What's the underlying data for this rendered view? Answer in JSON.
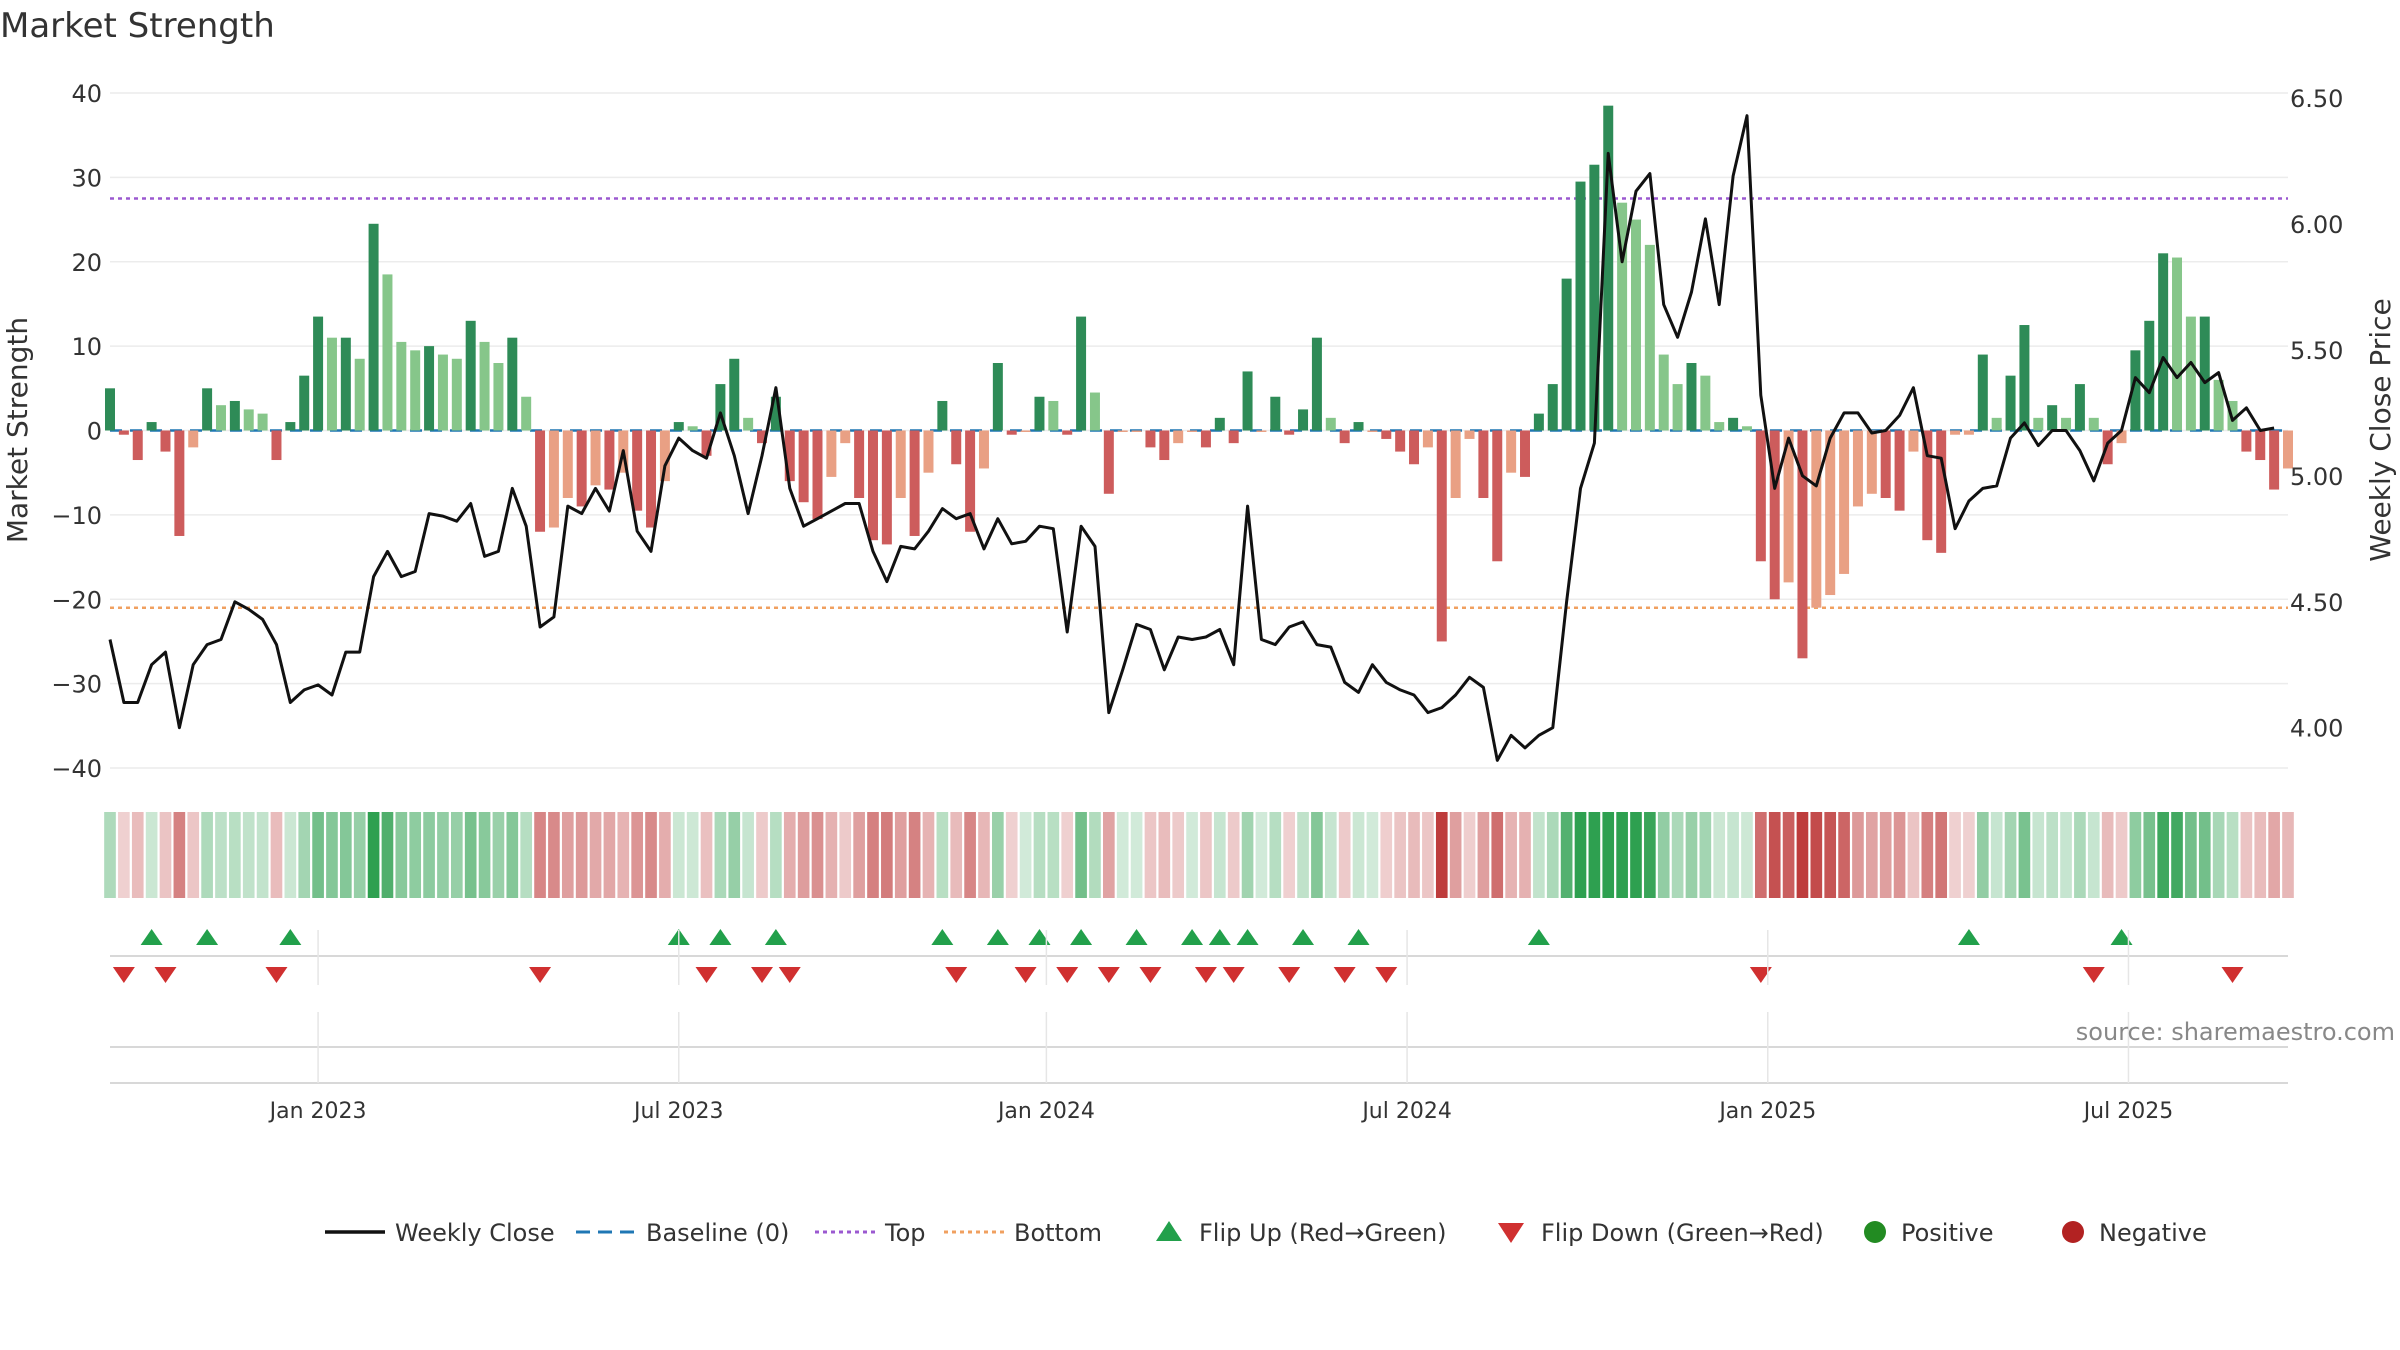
{
  "title": "Market Strength",
  "source": "source: sharemaestro.com",
  "legend": [
    {
      "label": "Weekly Close",
      "kind": "line",
      "color": "#111111"
    },
    {
      "label": "Baseline (0)",
      "kind": "dash",
      "color": "#1f77b4"
    },
    {
      "label": "Top",
      "kind": "dot",
      "color": "#9b59d0"
    },
    {
      "label": "Bottom",
      "kind": "dot",
      "color": "#f0a060"
    },
    {
      "label": "Flip Up (Red→Green)",
      "kind": "tri-up",
      "color": "#22a04b"
    },
    {
      "label": "Flip Down (Green→Red)",
      "kind": "tri-down",
      "color": "#d03030"
    },
    {
      "label": "Positive",
      "kind": "circle",
      "color": "#228b22"
    },
    {
      "label": "Negative",
      "kind": "circle",
      "color": "#b22222"
    }
  ],
  "chart_data": {
    "type": "bar",
    "title": "Market Strength",
    "ylabel": "Market Strength",
    "y2label": "Weekly Close Price",
    "ylim": [
      -40,
      40
    ],
    "y_ticks": [
      "40",
      "30",
      "20",
      "10",
      "0",
      "−10",
      "−20",
      "−30",
      "−40"
    ],
    "y2lim": [
      3.84,
      6.52
    ],
    "y2_ticks": [
      "6.50",
      "6.00",
      "5.50",
      "5.00",
      "4.50",
      "4.00"
    ],
    "x_ticks": [
      "Jan 2023",
      "Jul 2023",
      "Jan 2024",
      "Jul 2024",
      "Jan 2025",
      "Jul 2025"
    ],
    "x_tick_weeks": [
      15,
      41,
      67.5,
      93.5,
      119.5,
      145.5
    ],
    "top_level": 27.5,
    "bottom_level": -21,
    "baseline": 0,
    "colors": {
      "strong_pos": "#2e8b57",
      "weak_pos": "#86c68a",
      "strong_neg": "#cd5c5c",
      "weak_neg": "#e9a084",
      "close": "#111111",
      "flip_up": "#22a04b",
      "flip_down": "#d03030"
    },
    "strength": [
      5,
      -0.5,
      -3.5,
      1,
      -2.5,
      -12.5,
      -2,
      5,
      3,
      3.5,
      2.5,
      2,
      -3.5,
      1,
      6.5,
      13.5,
      11,
      11,
      8.5,
      24.5,
      18.5,
      10.5,
      9.5,
      10,
      9,
      8.5,
      13,
      10.5,
      8,
      11,
      4,
      -12,
      -11.5,
      -8,
      -9,
      -6.5,
      -7,
      -5,
      -9.5,
      -11.5,
      -6,
      1,
      0.5,
      -3,
      5.5,
      8.5,
      1.5,
      -1.5,
      4,
      -6,
      -8.5,
      -10.5,
      -5.5,
      -1.5,
      -8,
      -13,
      -13.5,
      -8,
      -12.5,
      -5,
      3.5,
      -4,
      -12,
      -4.5,
      8,
      -0.5,
      0,
      4,
      3.5,
      -0.5,
      13.5,
      4.5,
      -7.5,
      0,
      0,
      -2,
      -3.5,
      -1.5,
      0,
      -2,
      1.5,
      -1.5,
      7,
      0,
      4,
      -0.5,
      2.5,
      11,
      1.5,
      -1.5,
      1,
      0,
      -1,
      -2.5,
      -4,
      -2,
      -25,
      -8,
      -1,
      -8,
      -15.5,
      -5,
      -5.5,
      2,
      5.5,
      18,
      29.5,
      31.5,
      38.5,
      27,
      25,
      22,
      9,
      5.5,
      8,
      6.5,
      1,
      1.5,
      0.5,
      -15.5,
      -20,
      -18,
      -27,
      -21,
      -19.5,
      -17,
      -9,
      -7.5,
      -8,
      -9.5,
      -2.5,
      -13,
      -14.5,
      -0.5,
      -0.5,
      9,
      1.5,
      6.5,
      12.5,
      1.5,
      3,
      1.5,
      5.5,
      1.5,
      -4,
      -1.5,
      9.5,
      13,
      21,
      20.5,
      13.5,
      13.5,
      6,
      3.5,
      -2.5,
      -3.5,
      -7,
      -4.5
    ],
    "weekly_close": [
      4.35,
      4.1,
      4.1,
      4.25,
      4.3,
      4.0,
      4.25,
      4.33,
      4.35,
      4.5,
      4.47,
      4.43,
      4.33,
      4.1,
      4.15,
      4.17,
      4.13,
      4.3,
      4.3,
      4.6,
      4.7,
      4.6,
      4.62,
      4.85,
      4.84,
      4.82,
      4.89,
      4.68,
      4.7,
      4.95,
      4.8,
      4.4,
      4.44,
      4.88,
      4.85,
      4.95,
      4.86,
      5.1,
      4.78,
      4.7,
      5.04,
      5.15,
      5.1,
      5.07,
      5.25,
      5.08,
      4.85,
      5.08,
      5.35,
      4.95,
      4.8,
      4.83,
      4.86,
      4.89,
      4.89,
      4.7,
      4.58,
      4.72,
      4.71,
      4.78,
      4.87,
      4.83,
      4.85,
      4.71,
      4.83,
      4.73,
      4.74,
      4.8,
      4.79,
      4.38,
      4.8,
      4.72,
      4.06,
      4.23,
      4.41,
      4.39,
      4.23,
      4.36,
      4.35,
      4.36,
      4.39,
      4.25,
      4.88,
      4.35,
      4.33,
      4.4,
      4.42,
      4.33,
      4.32,
      4.18,
      4.14,
      4.25,
      4.18,
      4.15,
      4.13,
      4.06,
      4.08,
      4.13,
      4.2,
      4.16,
      3.87,
      3.97,
      3.92,
      3.97,
      4.0,
      4.5,
      4.95,
      5.13,
      6.28,
      5.85,
      6.13,
      6.2,
      5.68,
      5.55,
      5.73,
      6.02,
      5.68,
      6.19,
      6.43,
      5.32,
      4.95,
      5.15,
      5.0,
      4.96,
      5.15,
      5.25,
      5.25,
      5.17,
      5.18,
      5.24,
      5.35,
      5.08,
      5.07,
      4.79,
      4.9,
      4.95,
      4.96,
      5.15,
      5.21,
      5.12,
      5.18,
      5.18,
      5.1,
      4.98,
      5.13,
      5.18,
      5.39,
      5.33,
      5.47,
      5.39,
      5.45,
      5.37,
      5.41,
      5.22,
      5.27,
      5.18,
      5.19
    ],
    "flip_up_weeks": [
      3,
      7,
      13,
      41,
      44,
      48,
      60,
      64,
      67,
      70,
      74,
      78,
      80,
      82,
      86,
      90,
      103,
      134,
      145
    ],
    "flip_down_weeks": [
      1,
      4,
      12,
      31,
      43,
      47,
      49,
      61,
      66,
      69,
      72,
      75,
      79,
      81,
      85,
      89,
      92,
      119,
      143,
      153
    ]
  }
}
